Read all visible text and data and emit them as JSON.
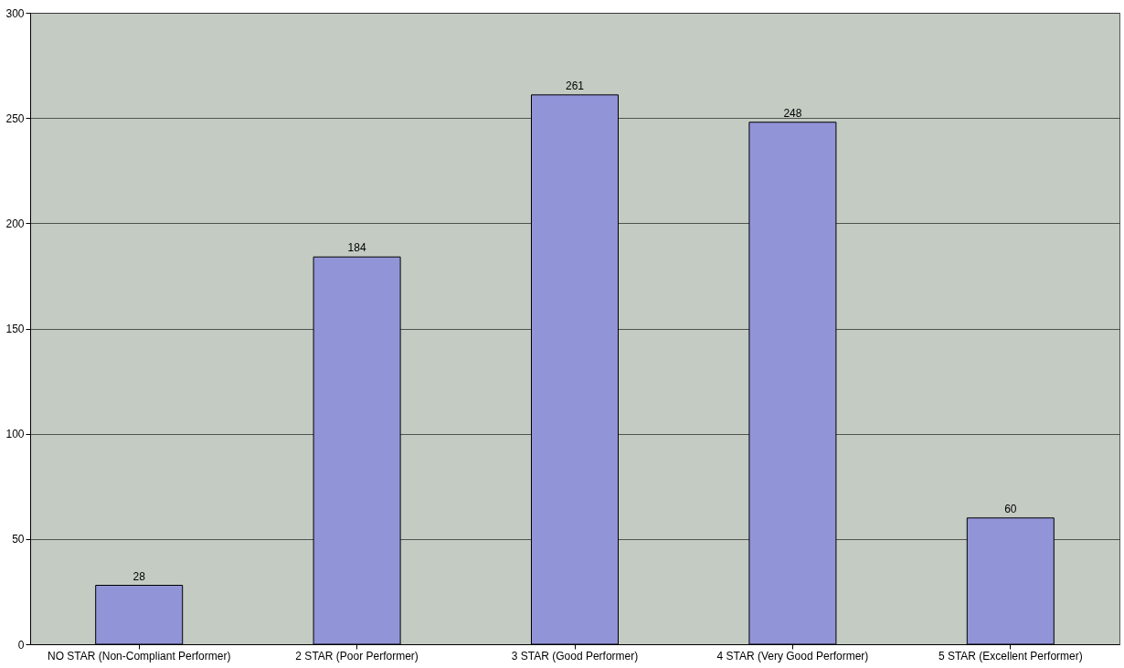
{
  "chart_data": {
    "type": "bar",
    "categories": [
      "NO STAR (Non-Compliant Performer)",
      "2 STAR (Poor Performer)",
      "3 STAR (Good Performer)",
      "4 STAR (Very Good Performer)",
      "5 STAR (Excellent Performer)"
    ],
    "values": [
      28,
      184,
      261,
      248,
      60
    ],
    "color": "#9294d8",
    "ylim": [
      0,
      300
    ],
    "yticks": [
      0,
      50,
      100,
      150,
      200,
      250,
      300
    ],
    "grid": "y",
    "data_labels": true
  }
}
